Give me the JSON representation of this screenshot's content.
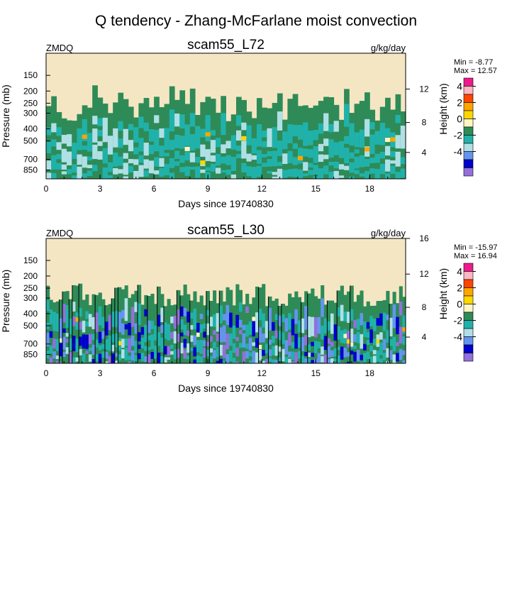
{
  "figure": {
    "title": "Q tendency - Zhang-McFarlane moist convection"
  },
  "chart_data": [
    {
      "type": "heatmap",
      "title": "scam55_L72",
      "left_label": "ZMDQ",
      "units": "g/kg/day",
      "xlabel": "Days since 19740830",
      "ylabel": "Pressure (mb)",
      "ylabel_right": "Height (km)",
      "x_ticks": [
        0,
        3,
        6,
        9,
        12,
        15,
        18
      ],
      "x_range": [
        0,
        20
      ],
      "y_ticks": [
        150,
        200,
        250,
        300,
        400,
        500,
        700,
        850
      ],
      "y_range_mb": [
        100,
        1000
      ],
      "height_ticks_km": [
        4,
        8,
        12
      ],
      "stats": {
        "min": "Min =  -8.77",
        "max": "Max =  12.57"
      },
      "colorbar_labels": [
        "4",
        "2",
        "0",
        "-2",
        "-4"
      ],
      "colorbar_colors": [
        "#ee1a8c",
        "#ffb6c1",
        "#ff4500",
        "#ffa500",
        "#ffd700",
        "#fff6c2",
        "#2e8b57",
        "#20b2aa",
        "#b0e0e6",
        "#6495ed",
        "#0000cd",
        "#9370db"
      ]
    },
    {
      "type": "heatmap",
      "title": "scam55_L30",
      "left_label": "ZMDQ",
      "units": "g/kg/day",
      "xlabel": "Days since 19740830",
      "ylabel": "Pressure (mb)",
      "ylabel_right": "Height (km)",
      "x_ticks": [
        0,
        3,
        6,
        9,
        12,
        15,
        18
      ],
      "x_range": [
        0,
        20
      ],
      "y_ticks": [
        150,
        200,
        250,
        300,
        400,
        500,
        700,
        850
      ],
      "y_range_mb": [
        100,
        1000
      ],
      "height_ticks_km": [
        4,
        8,
        12,
        16
      ],
      "stats": {
        "min": "Min = -15.97",
        "max": "Max =  16.94"
      },
      "colorbar_labels": [
        "4",
        "2",
        "0",
        "-2",
        "-4"
      ],
      "colorbar_colors": [
        "#ee1a8c",
        "#ffb6c1",
        "#ff4500",
        "#ffa500",
        "#ffd700",
        "#fff6c2",
        "#2e8b57",
        "#20b2aa",
        "#b0e0e6",
        "#6495ed",
        "#0000cd",
        "#9370db"
      ]
    }
  ]
}
